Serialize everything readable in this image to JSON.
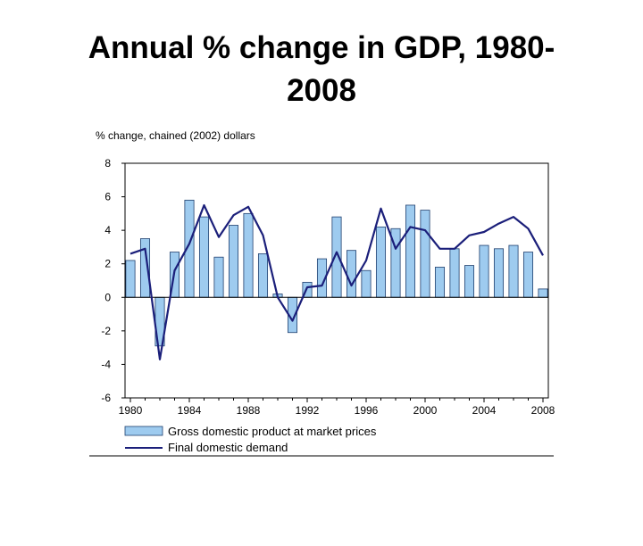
{
  "title_line1": "Annual % change in GDP, 1980-",
  "title_line2": "2008",
  "chart_data": {
    "type": "bar",
    "ylabel": "% change, chained (2002) dollars",
    "ylim": [
      -6,
      8
    ],
    "yticks": [
      8,
      6,
      4,
      2,
      0,
      -2,
      -4,
      -6
    ],
    "xlim": [
      1980,
      2008
    ],
    "xticks": [
      1980,
      1984,
      1988,
      1992,
      1996,
      2000,
      2004,
      2008
    ],
    "grid": false,
    "legend_position": "bottom",
    "colors": {
      "bar_fill": "#9ecbef",
      "bar_stroke": "#1f3f6e",
      "line": "#1b1f7a"
    },
    "x": [
      1980,
      1981,
      1982,
      1983,
      1984,
      1985,
      1986,
      1987,
      1988,
      1989,
      1990,
      1991,
      1992,
      1993,
      1994,
      1995,
      1996,
      1997,
      1998,
      1999,
      2000,
      2001,
      2002,
      2003,
      2004,
      2005,
      2006,
      2007,
      2008
    ],
    "series": [
      {
        "name": "Gross domestic product at market prices",
        "type": "bar",
        "values": [
          2.2,
          3.5,
          -2.9,
          2.7,
          5.8,
          4.8,
          2.4,
          4.3,
          5.0,
          2.6,
          0.2,
          -2.1,
          0.9,
          2.3,
          4.8,
          2.8,
          1.6,
          4.2,
          4.1,
          5.5,
          5.2,
          1.8,
          2.9,
          1.9,
          3.1,
          2.9,
          3.1,
          2.7,
          0.5
        ]
      },
      {
        "name": "Final domestic demand",
        "type": "line",
        "values": [
          2.6,
          2.9,
          -3.7,
          1.6,
          3.2,
          5.5,
          3.6,
          4.9,
          5.4,
          3.7,
          0.0,
          -1.4,
          0.6,
          0.7,
          2.7,
          0.7,
          2.2,
          5.3,
          2.9,
          4.2,
          4.0,
          2.9,
          2.9,
          3.7,
          3.9,
          4.4,
          4.8,
          4.1,
          2.5
        ]
      }
    ]
  }
}
